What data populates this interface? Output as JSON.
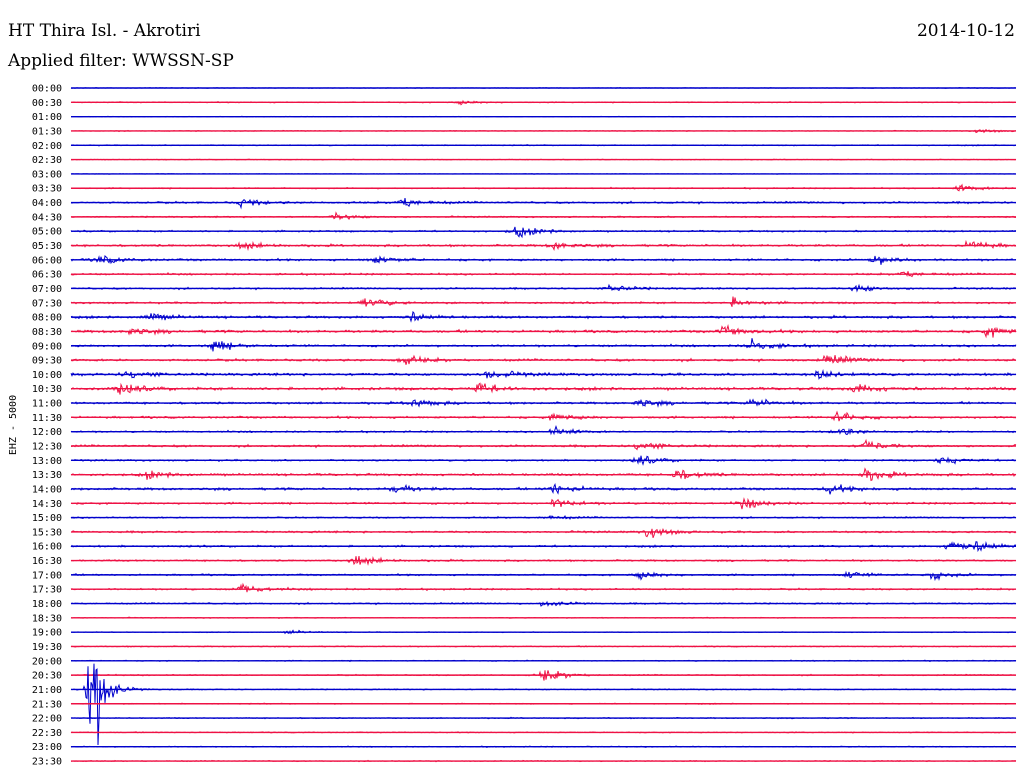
{
  "header": {
    "station": "HT Thira Isl. - Akrotiri",
    "date": "2014-10-12",
    "filter": "Applied filter: WWSSN-SP"
  },
  "colors": {
    "trace_a": "#0000cc",
    "trace_b": "#ee1144",
    "text": "#000000"
  },
  "chart_data": {
    "type": "line",
    "title": "HT Thira Isl. - Akrotiri",
    "subtitle": "Applied filter: WWSSN-SP",
    "date": "2014-10-12",
    "ylabel": "EHZ - 5000",
    "xlabel": "",
    "tick_labels": [
      "00:00",
      "00:30",
      "01:00",
      "01:30",
      "02:00",
      "02:30",
      "03:00",
      "03:30",
      "04:00",
      "04:30",
      "05:00",
      "05:30",
      "06:00",
      "06:30",
      "07:00",
      "07:30",
      "08:00",
      "08:30",
      "09:00",
      "09:30",
      "10:00",
      "10:30",
      "11:00",
      "11:30",
      "12:00",
      "12:30",
      "13:00",
      "13:30",
      "14:00",
      "14:30",
      "15:00",
      "15:30",
      "16:00",
      "16:30",
      "17:00",
      "17:30",
      "18:00",
      "18:30",
      "19:00",
      "19:30",
      "20:00",
      "20:30",
      "21:00",
      "21:30",
      "22:00",
      "22:30",
      "23:00",
      "23:30"
    ],
    "row_noise": [
      0.6,
      1.0,
      0.5,
      0.8,
      1.0,
      0.7,
      0.5,
      1.2,
      1.8,
      1.4,
      1.6,
      2.0,
      2.0,
      1.7,
      1.6,
      1.8,
      2.2,
      2.4,
      2.0,
      2.2,
      2.4,
      2.6,
      2.0,
      2.0,
      1.6,
      2.0,
      1.6,
      2.2,
      2.2,
      1.8,
      1.4,
      1.8,
      1.8,
      1.6,
      1.6,
      1.6,
      1.4,
      0.9,
      0.8,
      1.0,
      1.0,
      1.2,
      1.0,
      1.0,
      1.0,
      0.9,
      1.0,
      0.9
    ],
    "events": [
      {
        "row": 1,
        "x": 0.41,
        "amp": 3
      },
      {
        "row": 3,
        "x": 0.96,
        "amp": 3
      },
      {
        "row": 7,
        "x": 0.94,
        "amp": 5
      },
      {
        "row": 8,
        "x": 0.18,
        "amp": 6
      },
      {
        "row": 8,
        "x": 0.35,
        "amp": 9
      },
      {
        "row": 9,
        "x": 0.28,
        "amp": 5
      },
      {
        "row": 10,
        "x": 0.47,
        "amp": 9
      },
      {
        "row": 11,
        "x": 0.18,
        "amp": 6
      },
      {
        "row": 11,
        "x": 0.51,
        "amp": 6
      },
      {
        "row": 11,
        "x": 0.95,
        "amp": 8
      },
      {
        "row": 12,
        "x": 0.03,
        "amp": 6
      },
      {
        "row": 12,
        "x": 0.32,
        "amp": 6
      },
      {
        "row": 12,
        "x": 0.85,
        "amp": 7
      },
      {
        "row": 13,
        "x": 0.88,
        "amp": 6
      },
      {
        "row": 14,
        "x": 0.57,
        "amp": 7
      },
      {
        "row": 14,
        "x": 0.83,
        "amp": 6
      },
      {
        "row": 15,
        "x": 0.31,
        "amp": 8
      },
      {
        "row": 15,
        "x": 0.7,
        "amp": 7
      },
      {
        "row": 16,
        "x": 0.08,
        "amp": 7
      },
      {
        "row": 16,
        "x": 0.36,
        "amp": 6
      },
      {
        "row": 17,
        "x": 0.06,
        "amp": 6
      },
      {
        "row": 17,
        "x": 0.69,
        "amp": 8
      },
      {
        "row": 17,
        "x": 0.97,
        "amp": 8
      },
      {
        "row": 18,
        "x": 0.15,
        "amp": 9
      },
      {
        "row": 18,
        "x": 0.72,
        "amp": 9
      },
      {
        "row": 19,
        "x": 0.35,
        "amp": 7
      },
      {
        "row": 19,
        "x": 0.8,
        "amp": 8
      },
      {
        "row": 20,
        "x": 0.06,
        "amp": 8
      },
      {
        "row": 20,
        "x": 0.44,
        "amp": 8
      },
      {
        "row": 20,
        "x": 0.79,
        "amp": 6
      },
      {
        "row": 21,
        "x": 0.05,
        "amp": 8
      },
      {
        "row": 21,
        "x": 0.43,
        "amp": 8
      },
      {
        "row": 21,
        "x": 0.83,
        "amp": 7
      },
      {
        "row": 22,
        "x": 0.36,
        "amp": 7
      },
      {
        "row": 22,
        "x": 0.6,
        "amp": 6
      },
      {
        "row": 22,
        "x": 0.72,
        "amp": 7
      },
      {
        "row": 23,
        "x": 0.51,
        "amp": 6
      },
      {
        "row": 23,
        "x": 0.81,
        "amp": 8
      },
      {
        "row": 24,
        "x": 0.51,
        "amp": 6
      },
      {
        "row": 24,
        "x": 0.81,
        "amp": 7
      },
      {
        "row": 25,
        "x": 0.6,
        "amp": 9
      },
      {
        "row": 25,
        "x": 0.84,
        "amp": 8
      },
      {
        "row": 26,
        "x": 0.6,
        "amp": 7
      },
      {
        "row": 26,
        "x": 0.92,
        "amp": 6
      },
      {
        "row": 27,
        "x": 0.08,
        "amp": 5
      },
      {
        "row": 27,
        "x": 0.64,
        "amp": 8
      },
      {
        "row": 27,
        "x": 0.84,
        "amp": 9
      },
      {
        "row": 28,
        "x": 0.34,
        "amp": 7
      },
      {
        "row": 28,
        "x": 0.51,
        "amp": 9
      },
      {
        "row": 28,
        "x": 0.8,
        "amp": 7
      },
      {
        "row": 29,
        "x": 0.51,
        "amp": 7
      },
      {
        "row": 29,
        "x": 0.71,
        "amp": 8
      },
      {
        "row": 30,
        "x": 0.5,
        "amp": 4
      },
      {
        "row": 31,
        "x": 0.61,
        "amp": 9
      },
      {
        "row": 32,
        "x": 0.93,
        "amp": 8
      },
      {
        "row": 32,
        "x": 0.96,
        "amp": 6
      },
      {
        "row": 33,
        "x": 0.3,
        "amp": 9
      },
      {
        "row": 34,
        "x": 0.6,
        "amp": 6
      },
      {
        "row": 34,
        "x": 0.82,
        "amp": 5
      },
      {
        "row": 34,
        "x": 0.91,
        "amp": 6
      },
      {
        "row": 35,
        "x": 0.18,
        "amp": 8
      },
      {
        "row": 36,
        "x": 0.5,
        "amp": 5
      },
      {
        "row": 38,
        "x": 0.23,
        "amp": 3
      },
      {
        "row": 41,
        "x": 0.5,
        "amp": 10
      }
    ],
    "quake": {
      "row": 42,
      "x": 0.02,
      "amp": 170
    },
    "ylim": [
      0,
      48
    ],
    "grid": false,
    "legend": "none"
  }
}
